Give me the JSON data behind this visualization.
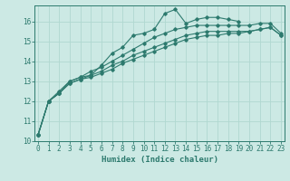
{
  "title": "",
  "xlabel": "Humidex (Indice chaleur)",
  "ylabel": "",
  "background_color": "#cce9e4",
  "line_color": "#2d7a6e",
  "grid_color": "#b0d8d0",
  "x_values": [
    0,
    1,
    2,
    3,
    4,
    5,
    6,
    7,
    8,
    9,
    10,
    11,
    12,
    13,
    14,
    15,
    16,
    17,
    18,
    19,
    20,
    21,
    22,
    23
  ],
  "series": [
    [
      10.3,
      12.0,
      12.5,
      13.0,
      13.2,
      13.3,
      13.8,
      14.4,
      14.7,
      15.3,
      15.4,
      15.6,
      16.4,
      16.6,
      15.9,
      16.1,
      16.2,
      16.2,
      16.1,
      16.0,
      null,
      null,
      null,
      null
    ],
    [
      10.3,
      12.0,
      12.4,
      13.0,
      13.2,
      13.5,
      13.7,
      14.0,
      14.3,
      14.6,
      14.9,
      15.2,
      15.4,
      15.6,
      15.7,
      15.8,
      15.8,
      15.8,
      15.8,
      15.8,
      15.8,
      15.9,
      15.9,
      15.4
    ],
    [
      10.3,
      12.0,
      12.4,
      12.9,
      13.1,
      13.3,
      13.5,
      13.8,
      14.0,
      14.3,
      14.5,
      14.7,
      14.9,
      15.1,
      15.3,
      15.4,
      15.5,
      15.5,
      15.5,
      15.5,
      15.5,
      15.6,
      15.7,
      15.3
    ],
    [
      10.3,
      12.0,
      12.4,
      12.9,
      13.1,
      13.2,
      13.4,
      13.6,
      13.9,
      14.1,
      14.3,
      14.5,
      14.7,
      14.9,
      15.1,
      15.2,
      15.3,
      15.3,
      15.4,
      15.4,
      15.5,
      15.6,
      15.7,
      15.3
    ]
  ],
  "ylim": [
    10.0,
    16.8
  ],
  "xlim": [
    -0.3,
    23.3
  ],
  "yticks": [
    10,
    11,
    12,
    13,
    14,
    15,
    16
  ],
  "xticks": [
    0,
    1,
    2,
    3,
    4,
    5,
    6,
    7,
    8,
    9,
    10,
    11,
    12,
    13,
    14,
    15,
    16,
    17,
    18,
    19,
    20,
    21,
    22,
    23
  ],
  "xtick_labels": [
    "0",
    "1",
    "2",
    "3",
    "4",
    "5",
    "6",
    "7",
    "8",
    "9",
    "10",
    "11",
    "12",
    "13",
    "14",
    "15",
    "16",
    "17",
    "18",
    "19",
    "20",
    "21",
    "22",
    "23"
  ],
  "marker": "D",
  "marker_size": 1.8,
  "line_width": 0.8,
  "tick_fontsize": 5.5,
  "xlabel_fontsize": 6.5
}
